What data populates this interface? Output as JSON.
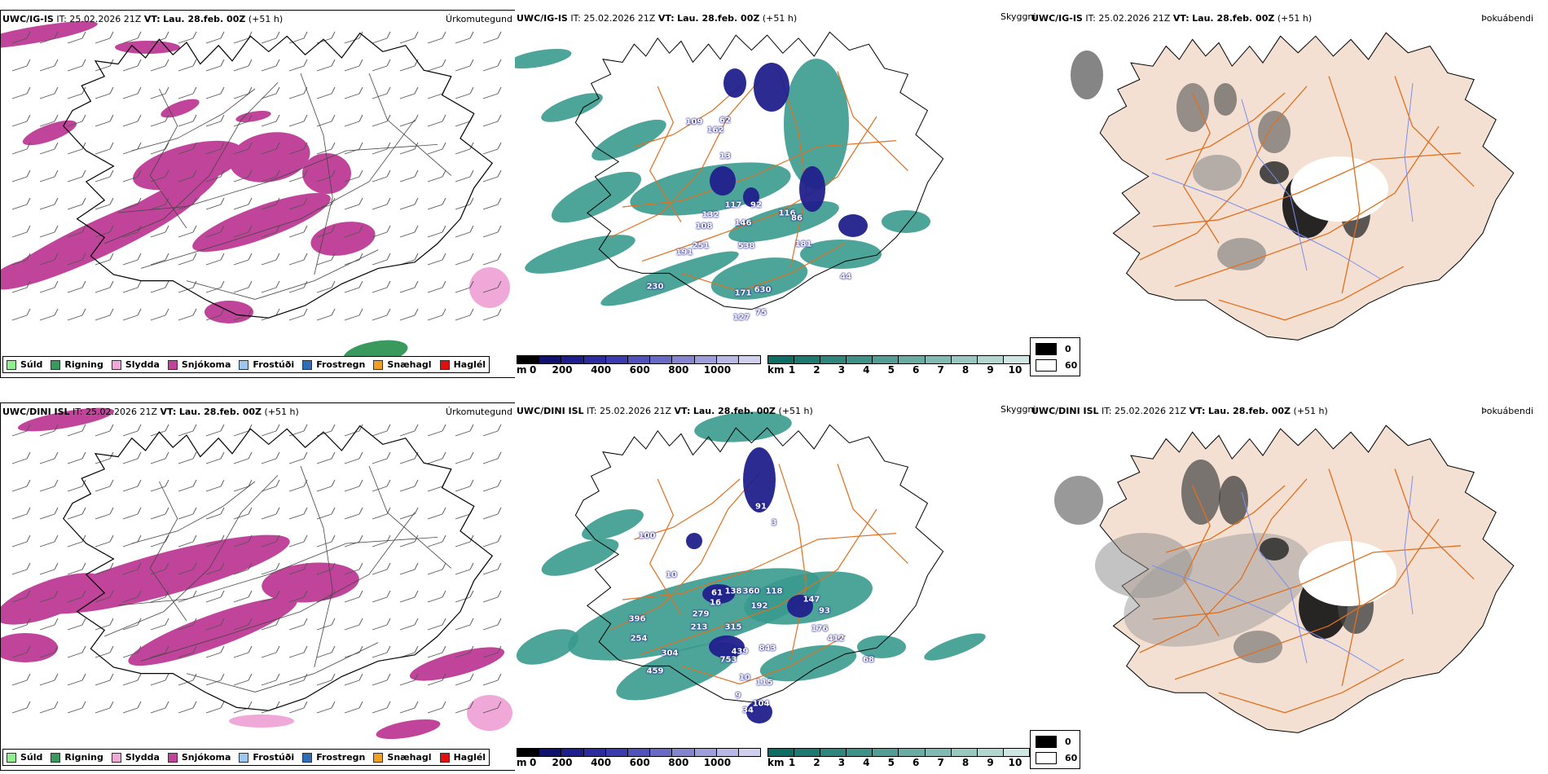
{
  "panels": [
    {
      "id": "precip-ig",
      "model": "UWC/IG-IS",
      "it_label": "IT:",
      "it_value": "25.02.2026 21Z",
      "vt_label": "VT:",
      "vt_value": "Lau. 28.feb. 00Z",
      "lead": "(+51 h)",
      "label": "Úrkomutegund"
    },
    {
      "id": "visibility-ig",
      "model": "UWC/IG-IS",
      "it_label": "IT:",
      "it_value": "25.02.2026 21Z",
      "vt_label": "VT:",
      "vt_value": "Lau. 28.feb. 00Z",
      "lead": "(+51 h)",
      "label": "Skyggni"
    },
    {
      "id": "fog-ig",
      "model": "UWC/IG-IS",
      "it_label": "IT:",
      "it_value": "25.02.2026 21Z",
      "vt_label": "VT:",
      "vt_value": "Lau. 28.feb. 00Z",
      "lead": "(+51 h)",
      "label": "Þokuábendi"
    },
    {
      "id": "precip-dini",
      "model": "UWC/DINI ISL",
      "it_label": "IT:",
      "it_value": "25.02.2026 21Z",
      "vt_label": "VT:",
      "vt_value": "Lau. 28.feb. 00Z",
      "lead": "(+51 h)",
      "label": "Úrkomutegund"
    },
    {
      "id": "visibility-dini",
      "model": "UWC/DINI ISL",
      "it_label": "IT:",
      "it_value": "25.02.2026 21Z",
      "vt_label": "VT:",
      "vt_value": "Lau. 28.feb. 00Z",
      "lead": "(+51 h)",
      "label": "Skyggni"
    },
    {
      "id": "fog-dini",
      "model": "UWC/DINI ISL",
      "it_label": "IT:",
      "it_value": "25.02.2026 21Z",
      "vt_label": "VT:",
      "vt_value": "Lau. 28.feb. 00Z",
      "lead": "(+51 h)",
      "label": "Þokuábendi"
    }
  ],
  "precip_legend": [
    {
      "label": "Súld",
      "color": "#90ee90"
    },
    {
      "label": "Rigning",
      "color": "#3a9a5e"
    },
    {
      "label": "Slydda",
      "color": "#f0a8d8"
    },
    {
      "label": "Snjókoma",
      "color": "#c0449a"
    },
    {
      "label": "Frostúði",
      "color": "#9cc8f0"
    },
    {
      "label": "Frostregn",
      "color": "#2e6eb8"
    },
    {
      "label": "Snæhagl",
      "color": "#f0a020"
    },
    {
      "label": "Haglél",
      "color": "#e01010"
    }
  ],
  "ceiling_bar": {
    "unit": "m",
    "ticks": [
      "0",
      "200",
      "400",
      "600",
      "800",
      "1000"
    ],
    "colors": [
      "#000000",
      "#10106e",
      "#1e1e8c",
      "#2c2ca0",
      "#3c3cb0",
      "#5252bc",
      "#6a6ac6",
      "#8484d0",
      "#9e9eda",
      "#b8b8e4",
      "#d0d0ee"
    ]
  },
  "visibility_bar": {
    "unit": "km",
    "ticks": [
      "1",
      "2",
      "3",
      "4",
      "5",
      "6",
      "7",
      "8",
      "9",
      "10"
    ],
    "colors": [
      "#0f6e64",
      "#1e7a70",
      "#2e867c",
      "#3e9288",
      "#529e94",
      "#68aca2",
      "#80bab2",
      "#9ac8c0",
      "#b4d6d0",
      "#d0e6e2"
    ]
  },
  "fog_legend": [
    {
      "label": "0",
      "color": "#000000"
    },
    {
      "label": "60",
      "color": "#ffffff"
    }
  ],
  "ceiling_labels_ig": [
    "109",
    "162",
    "62",
    "13",
    "117",
    "132",
    "92",
    "116",
    "108",
    "146",
    "86",
    "251",
    "191",
    "538",
    "181",
    "44",
    "230",
    "171",
    "630",
    "127",
    "75"
  ],
  "ceiling_labels_dini": [
    "91",
    "3",
    "100",
    "10",
    "61",
    "138",
    "360",
    "118",
    "16",
    "279",
    "192",
    "147",
    "93",
    "396",
    "213",
    "315",
    "176",
    "412",
    "254",
    "439",
    "843",
    "304",
    "753",
    "68",
    "459",
    "10",
    "115",
    "9",
    "104",
    "34"
  ],
  "colors": {
    "snow": "#c0449a",
    "sleet": "#f0a8d8",
    "rain": "#3a9a5e",
    "teal": "#3a9a8e",
    "navy": "#20208c",
    "land_fog": "#f4e0d2",
    "road": "#e07020",
    "river": "#7a8ef0"
  }
}
